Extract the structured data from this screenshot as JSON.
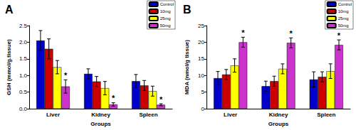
{
  "chart_data": [
    {
      "type": "bar",
      "title": "A",
      "x_label": "Groups",
      "y_label": "GSH (mmol/g.tissue)",
      "categories": [
        "Liver",
        "Kidney",
        "Spleen"
      ],
      "series": [
        {
          "name": "Control",
          "color": "#0000cc",
          "values": [
            2.05,
            1.05,
            0.83
          ],
          "errors": [
            0.3,
            0.15,
            0.2
          ]
        },
        {
          "name": "10mg",
          "color": "#cc0000",
          "values": [
            1.8,
            0.82,
            0.7
          ],
          "errors": [
            0.3,
            0.15,
            0.15
          ]
        },
        {
          "name": "25mg",
          "color": "#ffff00",
          "values": [
            1.25,
            0.62,
            0.53
          ],
          "errors": [
            0.2,
            0.2,
            0.15
          ]
        },
        {
          "name": "50mg",
          "color": "#cc33cc",
          "values": [
            0.67,
            0.13,
            0.12
          ],
          "errors": [
            0.2,
            0.05,
            0.03
          ]
        }
      ],
      "annotations": [
        {
          "text": "*",
          "series": "50mg",
          "category": "Liver"
        },
        {
          "text": "*",
          "series": "50mg",
          "category": "Kidney"
        },
        {
          "text": "*",
          "series": "50mg",
          "category": "Spleen"
        }
      ],
      "ylim": [
        0,
        2.5
      ],
      "yticks": [
        {
          "value": 0,
          "label": "0.0"
        },
        0.5,
        {
          "value": 1,
          "label": "1.0"
        },
        1.5,
        {
          "value": 2,
          "label": "2.0"
        },
        2.5
      ],
      "grid": false,
      "legend": "upper right"
    },
    {
      "type": "bar",
      "title": "B",
      "x_label": "Groups",
      "y_label": "MDA (nmol/g tissue)",
      "categories": [
        "Liver",
        "Kidney",
        "Spleen"
      ],
      "series": [
        {
          "name": "Control",
          "color": "#0000cc",
          "values": [
            9.2,
            6.8,
            8.8
          ],
          "errors": [
            2,
            1.5,
            2.3
          ]
        },
        {
          "name": "10mg",
          "color": "#cc0000",
          "values": [
            10.3,
            8.3,
            9.6
          ],
          "errors": [
            1.5,
            1.5,
            1.5
          ]
        },
        {
          "name": "25mg",
          "color": "#ffff00",
          "values": [
            13,
            12,
            11.3
          ],
          "errors": [
            2,
            1.5,
            2.2
          ]
        },
        {
          "name": "50mg",
          "color": "#cc33cc",
          "values": [
            20,
            19.8,
            19.2
          ],
          "errors": [
            1.5,
            1.5,
            1.5
          ]
        }
      ],
      "annotations": [
        {
          "text": "*",
          "series": "50mg",
          "category": "Liver"
        },
        {
          "text": "*",
          "series": "50mg",
          "category": "Kidney"
        },
        {
          "text": "*",
          "series": "50mg",
          "category": "Spleen"
        }
      ],
      "ylim": [
        0,
        25
      ],
      "yticks": [
        0,
        5,
        10,
        15,
        20,
        25
      ],
      "grid": false,
      "legend": "upper right"
    }
  ]
}
